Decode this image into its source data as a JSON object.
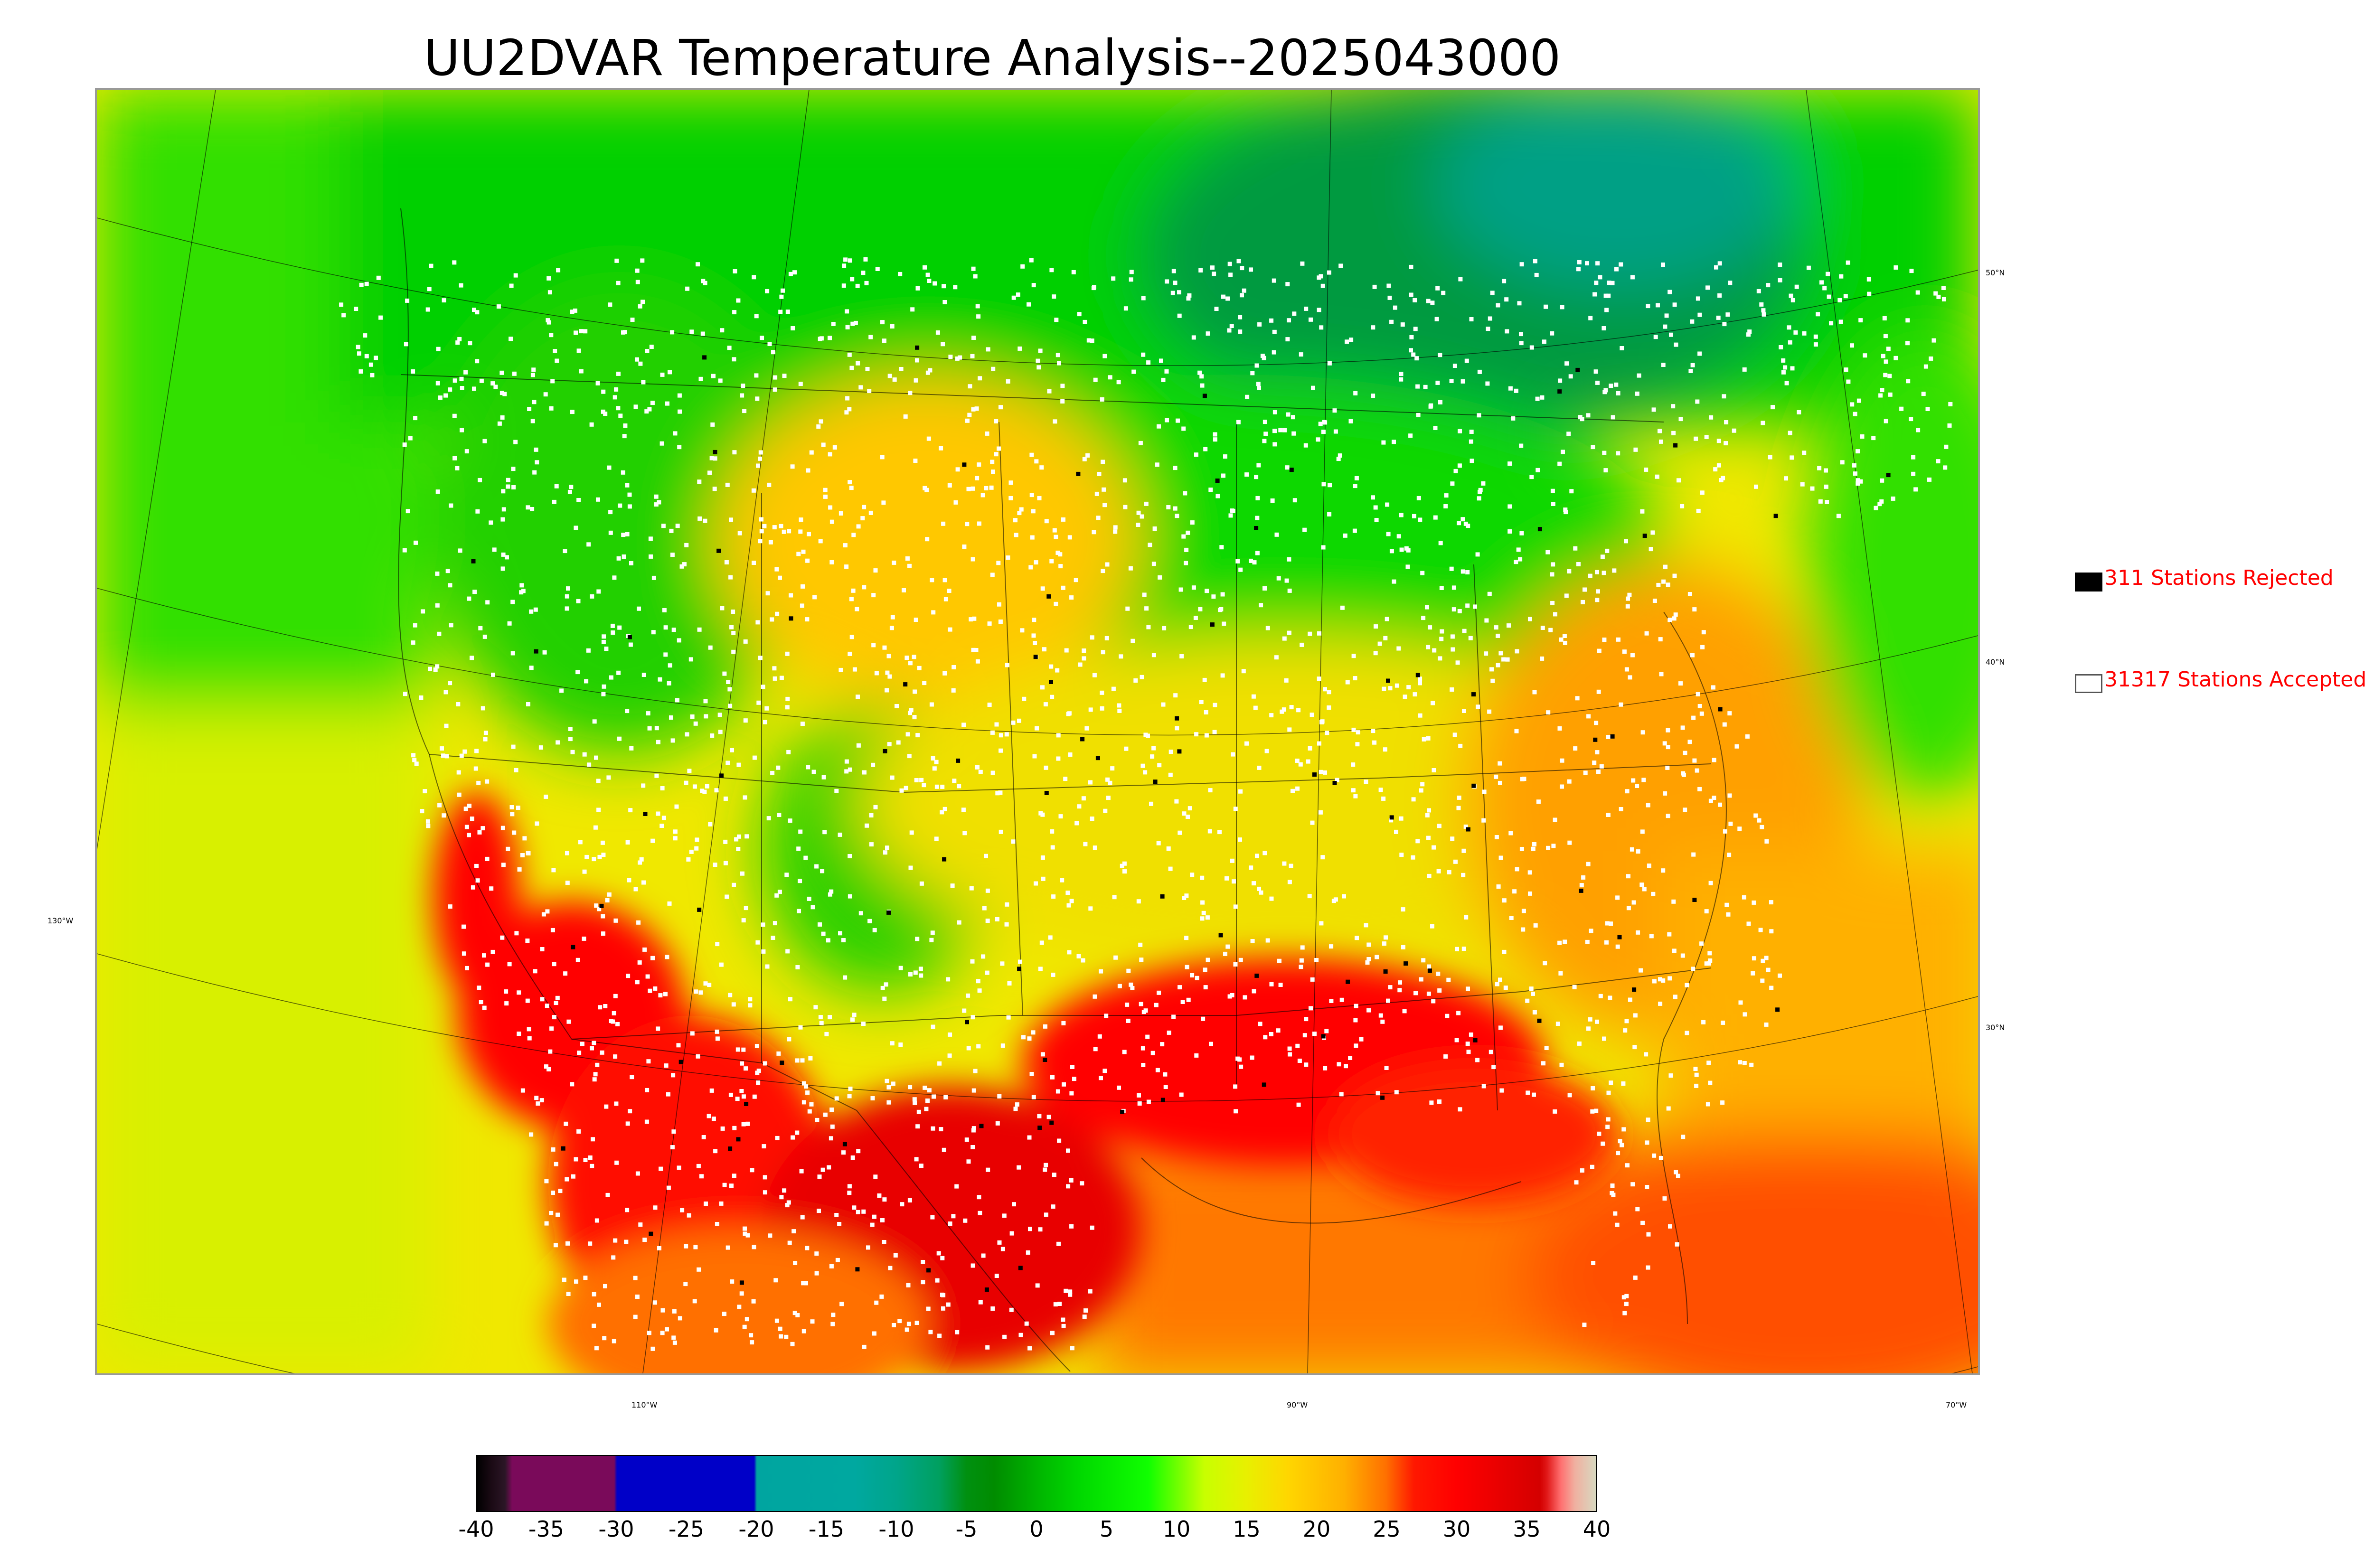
{
  "title": "UU2DVAR Temperature Analysis--2025043000",
  "map": {
    "lon_labels": [
      "110°W",
      "90°W",
      "70°W"
    ],
    "lat_labels": [
      "50°N",
      "40°N",
      "30°N"
    ],
    "left_label": "130°W"
  },
  "legend": {
    "rejected": {
      "count": "311",
      "text": "311 Stations Rejected",
      "color": "#000000"
    },
    "accepted": {
      "count": "31317",
      "text": "31317 Stations Accepted",
      "color": "#ffffff"
    }
  },
  "colorbar": {
    "ticks": [
      "-40",
      "-35",
      "-30",
      "-25",
      "-20",
      "-15",
      "-10",
      "-5",
      "0",
      "5",
      "10",
      "15",
      "20",
      "25",
      "30",
      "35",
      "40"
    ],
    "range": [
      -40,
      40
    ],
    "unit_note": "",
    "stops": [
      {
        "v": -40,
        "c": "#000000"
      },
      {
        "v": -39,
        "c": "#1a0a14"
      },
      {
        "v": -38,
        "c": "#2b1626"
      },
      {
        "v": -37.5,
        "c": "#7a0a5a"
      },
      {
        "v": -30.2,
        "c": "#7a0a5a"
      },
      {
        "v": -30,
        "c": "#0000c8"
      },
      {
        "v": -20.2,
        "c": "#0000c8"
      },
      {
        "v": -20,
        "c": "#00a5a0"
      },
      {
        "v": -13,
        "c": "#00a8a0"
      },
      {
        "v": -10,
        "c": "#00a58a"
      },
      {
        "v": -7,
        "c": "#00a060"
      },
      {
        "v": -5,
        "c": "#009010"
      },
      {
        "v": -3,
        "c": "#008c00"
      },
      {
        "v": 0,
        "c": "#00b400"
      },
      {
        "v": 3,
        "c": "#00d800"
      },
      {
        "v": 8,
        "c": "#10ff00"
      },
      {
        "v": 12,
        "c": "#c8ff00"
      },
      {
        "v": 15,
        "c": "#e8f000"
      },
      {
        "v": 18,
        "c": "#ffd600"
      },
      {
        "v": 22,
        "c": "#ffb000"
      },
      {
        "v": 25,
        "c": "#ff7000"
      },
      {
        "v": 27,
        "c": "#ff1800"
      },
      {
        "v": 30,
        "c": "#ff0000"
      },
      {
        "v": 36,
        "c": "#d40000"
      },
      {
        "v": 36.5,
        "c": "#e01818"
      },
      {
        "v": 37.5,
        "c": "#ff7070"
      },
      {
        "v": 38.5,
        "c": "#f0b0a0"
      },
      {
        "v": 40,
        "c": "#d8d8c0"
      }
    ]
  },
  "stations": {
    "rejected_dot_color": "#000000",
    "accepted_dot_color": "#ffffff"
  }
}
